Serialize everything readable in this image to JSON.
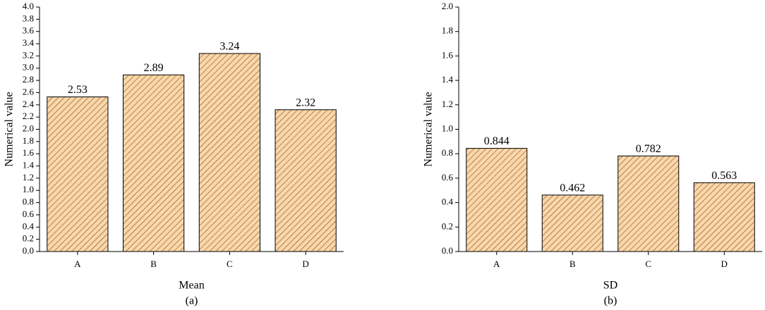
{
  "chart_data": [
    {
      "type": "bar",
      "categories": [
        "A",
        "B",
        "C",
        "D"
      ],
      "values": [
        2.53,
        2.89,
        3.24,
        2.32
      ],
      "color": "#fcd6a6",
      "hatch_color": "#6b5038",
      "ylim": [
        0,
        4.0
      ],
      "yticks": [
        {
          "value": 0,
          "label": "0.0"
        },
        0.2,
        0.4,
        0.6,
        0.8,
        {
          "value": 1,
          "label": "1.0"
        },
        1.2,
        1.4,
        1.6,
        1.8,
        {
          "value": 2,
          "label": "2.0"
        },
        2.2,
        2.4,
        2.6,
        2.8,
        {
          "value": 3,
          "label": "3.0"
        },
        3.2,
        3.4,
        3.6,
        3.8,
        {
          "value": 4,
          "label": "4.0"
        }
      ],
      "xlabel": "Mean",
      "ylabel": "Numerical value",
      "caption": "(a)"
    },
    {
      "type": "bar",
      "categories": [
        "A",
        "B",
        "C",
        "D"
      ],
      "values": [
        0.844,
        0.462,
        0.782,
        0.563
      ],
      "color": "#fcd6a6",
      "hatch_color": "#6b5038",
      "ylim": [
        0,
        2.0
      ],
      "yticks": [
        {
          "value": 0,
          "label": "0.0"
        },
        0.2,
        0.4,
        0.6,
        0.8,
        {
          "value": 1,
          "label": "1.0"
        },
        1.2,
        1.4,
        1.6,
        1.8,
        {
          "value": 2,
          "label": "2.0"
        }
      ],
      "xlabel": "SD",
      "ylabel": "Numerical value",
      "caption": "(b)"
    }
  ]
}
